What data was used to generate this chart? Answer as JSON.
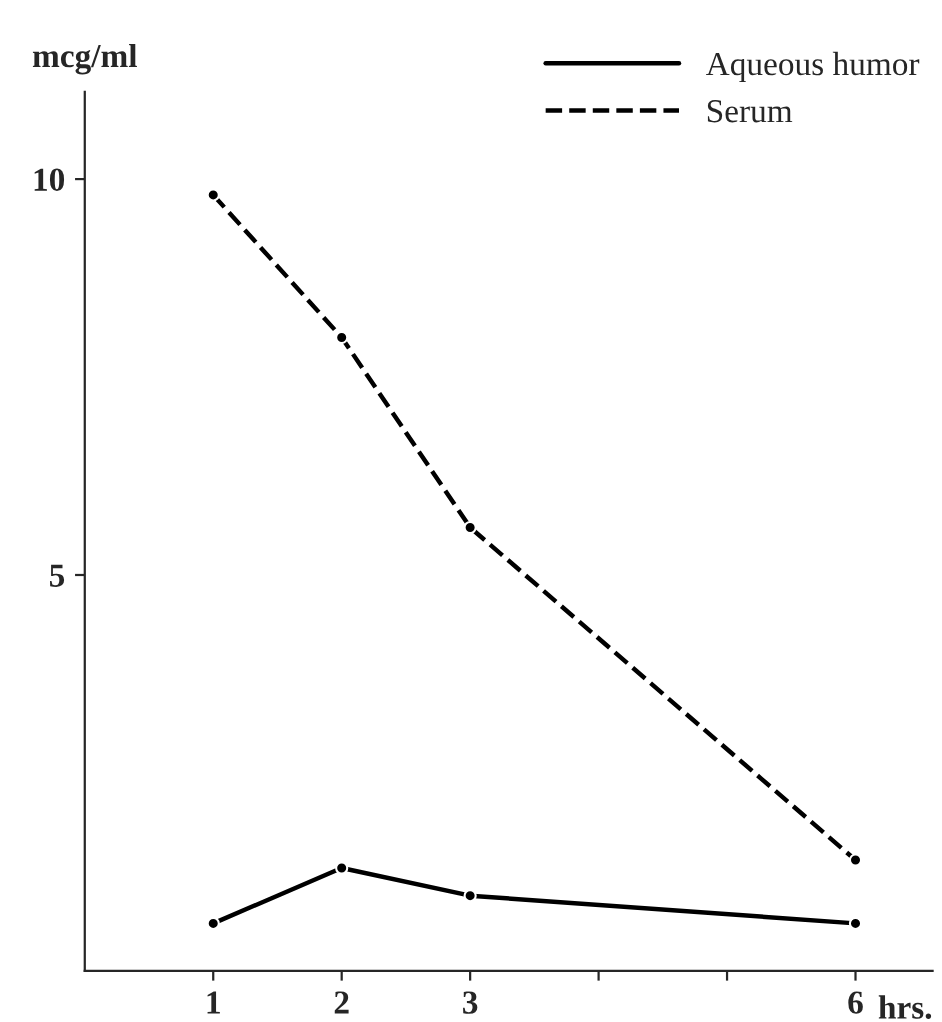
{
  "chart_data": {
    "type": "line",
    "xlabel": "hrs.",
    "ylabel": "mcg/ml",
    "x": [
      1,
      2,
      3,
      6
    ],
    "series": [
      {
        "name": "Aqueous humor",
        "color": "#000000",
        "line_style": "solid",
        "values": [
          0.6,
          1.3,
          0.95,
          0.6
        ]
      },
      {
        "name": "Serum",
        "color": "#000000",
        "line_style": "dashed",
        "values": [
          9.8,
          8.0,
          5.6,
          1.4
        ]
      }
    ],
    "xlim": [
      0,
      6.6
    ],
    "xticks": [
      1,
      2,
      3,
      {
        "value": 4,
        "label": null
      },
      {
        "value": 5,
        "label": null
      },
      6
    ],
    "ylim": [
      0,
      11.1
    ],
    "yticks": [
      5,
      10
    ],
    "marker": "circle",
    "grid": false,
    "legend": "top right"
  }
}
